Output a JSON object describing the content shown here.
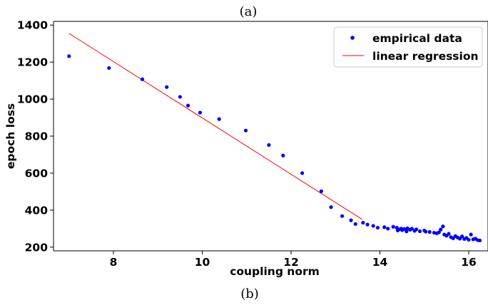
{
  "captions": {
    "top": "(a)",
    "bottom": "(b)"
  },
  "colors": {
    "data": "#0000ff",
    "fit": "#ff0000",
    "axis": "#000000",
    "legend_border": "#cccccc"
  },
  "chart_data": {
    "type": "scatter",
    "title": "",
    "xlabel": "coupling norm",
    "ylabel": "epoch loss",
    "xlim": [
      6.65,
      16.45
    ],
    "ylim": [
      180,
      1420
    ],
    "xticks": [
      8,
      10,
      12,
      14,
      16
    ],
    "yticks": [
      200,
      400,
      600,
      800,
      1000,
      1200,
      1400
    ],
    "grid": false,
    "legend_position": "top-right",
    "series": [
      {
        "name": "empirical data",
        "kind": "scatter",
        "color": "#0000ff",
        "points": [
          [
            7.0,
            1232
          ],
          [
            7.9,
            1168
          ],
          [
            8.65,
            1107
          ],
          [
            9.2,
            1065
          ],
          [
            9.5,
            1012
          ],
          [
            9.68,
            965
          ],
          [
            9.95,
            927
          ],
          [
            10.38,
            892
          ],
          [
            10.98,
            830
          ],
          [
            11.5,
            752
          ],
          [
            11.82,
            695
          ],
          [
            12.25,
            600
          ],
          [
            12.68,
            502
          ],
          [
            12.9,
            416
          ],
          [
            13.15,
            368
          ],
          [
            13.35,
            345
          ],
          [
            13.45,
            325
          ],
          [
            13.62,
            332
          ],
          [
            13.72,
            322
          ],
          [
            13.85,
            315
          ],
          [
            13.95,
            305
          ],
          [
            14.1,
            308
          ],
          [
            14.18,
            300
          ],
          [
            14.3,
            310
          ],
          [
            14.38,
            305
          ],
          [
            14.4,
            290
          ],
          [
            14.43,
            296
          ],
          [
            14.48,
            300
          ],
          [
            14.5,
            292
          ],
          [
            14.55,
            298
          ],
          [
            14.62,
            302
          ],
          [
            14.68,
            294
          ],
          [
            14.72,
            300
          ],
          [
            14.78,
            288
          ],
          [
            14.82,
            296
          ],
          [
            14.9,
            286
          ],
          [
            15.0,
            290
          ],
          [
            15.12,
            282
          ],
          [
            15.22,
            278
          ],
          [
            15.28,
            275
          ],
          [
            15.33,
            280
          ],
          [
            15.37,
            295
          ],
          [
            15.42,
            312
          ],
          [
            15.45,
            268
          ],
          [
            15.5,
            262
          ],
          [
            15.55,
            272
          ],
          [
            15.6,
            254
          ],
          [
            15.65,
            248
          ],
          [
            15.7,
            260
          ],
          [
            15.75,
            252
          ],
          [
            15.8,
            246
          ],
          [
            15.85,
            258
          ],
          [
            15.9,
            244
          ],
          [
            15.95,
            250
          ],
          [
            16.0,
            240
          ],
          [
            16.05,
            268
          ],
          [
            16.1,
            242
          ],
          [
            16.15,
            246
          ],
          [
            16.2,
            238
          ],
          [
            16.25,
            236
          ],
          [
            14.6,
            285
          ],
          [
            15.03,
            284
          ]
        ]
      },
      {
        "name": "linear regression",
        "kind": "line",
        "color": "#ff0000",
        "points": [
          [
            7.0,
            1355
          ],
          [
            13.6,
            350
          ]
        ]
      }
    ]
  }
}
